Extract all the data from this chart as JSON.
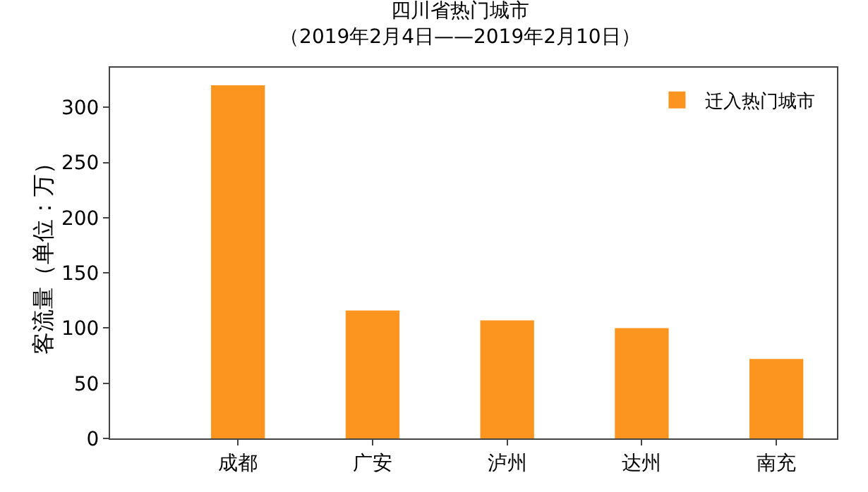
{
  "chart_data": {
    "type": "bar",
    "title": "四川省热门城市",
    "subtitle": "（2019年2月4日——2019年2月10日）",
    "ylabel": "客流量（单位：万）",
    "categories": [
      "成都",
      "广安",
      "泸州",
      "达州",
      "南充"
    ],
    "series": [
      {
        "name": "迁入热门城市",
        "color": "#fb951f",
        "values": [
          320,
          116,
          107,
          100,
          72
        ]
      }
    ],
    "ylim": [
      0,
      336
    ],
    "yticks": [
      0,
      50,
      100,
      150,
      200,
      250,
      300
    ],
    "grid": false,
    "legend": "top right"
  }
}
